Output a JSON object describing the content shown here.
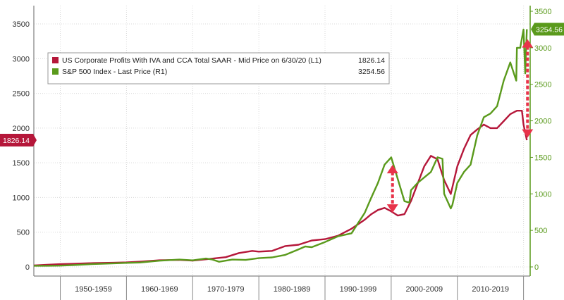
{
  "chart_data": {
    "type": "line",
    "legend": {
      "placement": "top-left",
      "entries": [
        {
          "label": "US Corporate Profits With IVA and CCA Total SAAR - Mid Price on 6/30/20 (L1)",
          "value": "1826.14",
          "color": "#b5173a"
        },
        {
          "label": "S&P 500 Index - Last Price (R1)",
          "value": "3254.56",
          "color": "#5a9a1c"
        }
      ]
    },
    "x_tick_labels": [
      "1950-1959",
      "1960-1969",
      "1970-1979",
      "1980-1989",
      "1990-1999",
      "2000-2009",
      "2010-2019"
    ],
    "xlim": [
      1946,
      2021
    ],
    "y_left": {
      "ticks": [
        "0",
        "500",
        "1000",
        "1500",
        "2000",
        "2500",
        "3000",
        "3500"
      ],
      "ylim": [
        0,
        3600
      ],
      "last_label": "1826.14"
    },
    "y_right": {
      "ticks": [
        "0",
        "500",
        "1000",
        "1500",
        "2000",
        "2500",
        "3000",
        "3500"
      ],
      "ylim": [
        0,
        3550
      ],
      "last_label": "3254.56"
    },
    "grid": true,
    "series": [
      {
        "name": "US Corporate Profits With IVA and CCA Total SAAR - Mid Price on 6/30/20 (L1)",
        "axis": "left",
        "color": "#b5173a",
        "x": [
          1946,
          1948,
          1950,
          1952,
          1955,
          1958,
          1960,
          1962,
          1965,
          1968,
          1970,
          1972,
          1974,
          1975,
          1977,
          1979,
          1980,
          1982,
          1984,
          1986,
          1988,
          1990,
          1992,
          1994,
          1996,
          1997,
          1998,
          1999,
          2000,
          2001,
          2002,
          2003,
          2004,
          2005,
          2006,
          2007,
          2008,
          2009,
          2010,
          2011,
          2012,
          2013,
          2014,
          2015,
          2016,
          2017,
          2018,
          2019,
          2019.75,
          2020,
          2020.5
        ],
        "y": [
          20,
          30,
          40,
          45,
          55,
          60,
          65,
          75,
          95,
          100,
          90,
          110,
          130,
          140,
          200,
          230,
          220,
          230,
          300,
          320,
          380,
          400,
          450,
          550,
          680,
          760,
          820,
          850,
          800,
          740,
          760,
          950,
          1200,
          1450,
          1600,
          1550,
          1250,
          1050,
          1450,
          1700,
          1900,
          1980,
          2050,
          2000,
          2000,
          2100,
          2200,
          2250,
          2250,
          2050,
          1826
        ]
      },
      {
        "name": "S&P 500 Index - Last Price (R1)",
        "axis": "right",
        "color": "#5a9a1c",
        "x": [
          1946,
          1948,
          1950,
          1952,
          1955,
          1957,
          1960,
          1962,
          1965,
          1968,
          1970,
          1972,
          1973,
          1974,
          1976,
          1978,
          1980,
          1982,
          1984,
          1986,
          1987,
          1988,
          1990,
          1992,
          1994,
          1995,
          1996,
          1997,
          1998,
          1999,
          2000,
          2001,
          2002,
          2002.75,
          2003,
          2004,
          2006,
          2007,
          2007.75,
          2008,
          2009,
          2009.25,
          2010,
          2011,
          2012,
          2013,
          2014,
          2015,
          2016,
          2017,
          2018,
          2018.9,
          2019,
          2019.5,
          2020,
          2020.25,
          2020.5
        ],
        "y": [
          15,
          15,
          17,
          25,
          40,
          45,
          55,
          60,
          85,
          100,
          90,
          115,
          100,
          70,
          100,
          95,
          120,
          130,
          165,
          240,
          280,
          270,
          340,
          420,
          460,
          600,
          740,
          950,
          1150,
          1400,
          1500,
          1200,
          900,
          880,
          1050,
          1150,
          1300,
          1500,
          1480,
          1000,
          800,
          850,
          1150,
          1300,
          1400,
          1800,
          2050,
          2100,
          2200,
          2550,
          2800,
          2550,
          3000,
          3000,
          3250,
          2650,
          3254.56
        ]
      }
    ],
    "annotations": [
      {
        "kind": "double-arrow",
        "x": 2000.2,
        "y_from": 780,
        "y_to": 1470,
        "color": "#e8334a"
      },
      {
        "kind": "double-arrow",
        "x": 2020.6,
        "y_from": 1860,
        "y_to": 3280,
        "color": "#e8334a"
      }
    ]
  }
}
